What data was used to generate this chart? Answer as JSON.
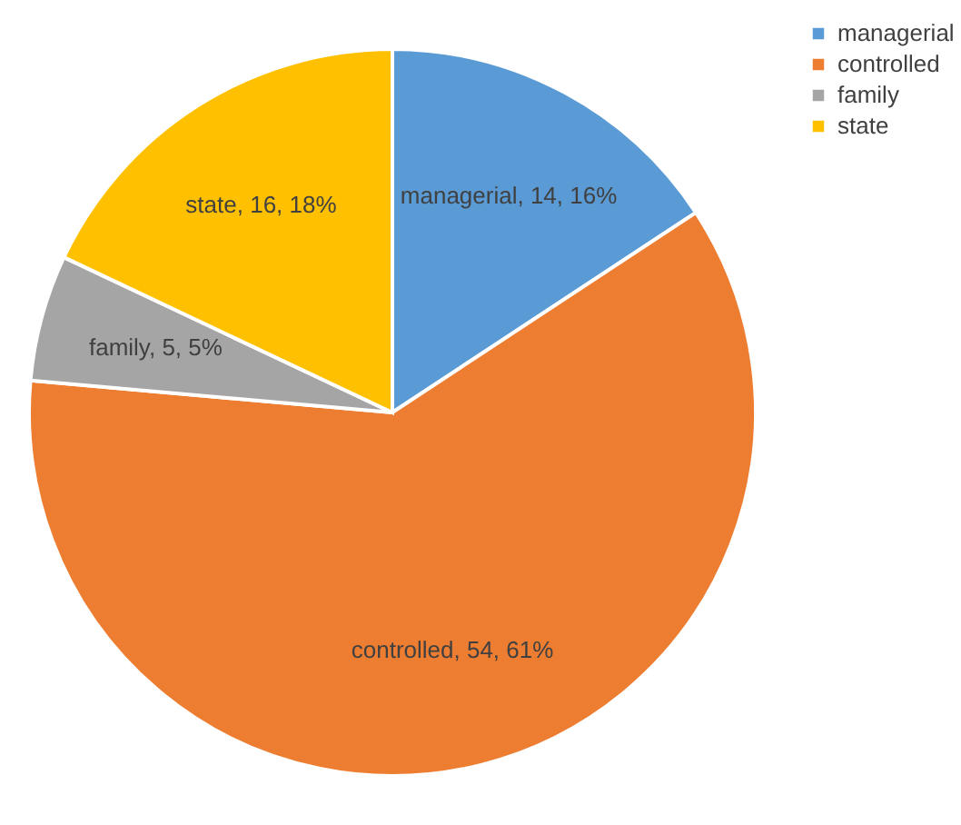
{
  "chart_data": {
    "type": "pie",
    "categories": [
      "managerial",
      "controlled",
      "family",
      "state"
    ],
    "values": [
      14,
      54,
      5,
      16
    ],
    "colors": [
      "#5b9bd5",
      "#ed7d31",
      "#a5a5a5",
      "#ffc000"
    ],
    "value_labels": [
      "managerial, 14, 16%",
      "controlled, 54, 61%",
      "family, 5, 5%",
      "state, 16, 18%"
    ],
    "legend": "right"
  }
}
